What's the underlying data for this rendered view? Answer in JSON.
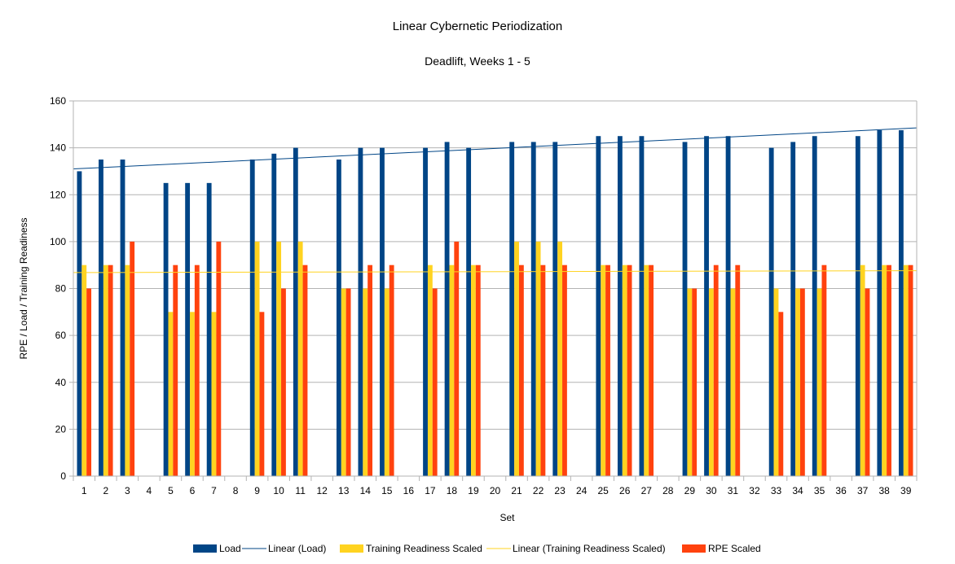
{
  "chart_data": {
    "type": "bar",
    "title": "Linear Cybernetic Periodization",
    "subtitle": "Deadlift, Weeks 1 - 5",
    "xlabel": "Set",
    "ylabel": "RPE / Load / Training Readiness",
    "ylim": [
      0,
      160
    ],
    "yticks": [
      0,
      20,
      40,
      60,
      80,
      100,
      120,
      140,
      160
    ],
    "grid": true,
    "legend_position": "bottom",
    "categories": [
      "1",
      "2",
      "3",
      "4",
      "5",
      "6",
      "7",
      "8",
      "9",
      "10",
      "11",
      "12",
      "13",
      "14",
      "15",
      "16",
      "17",
      "18",
      "19",
      "20",
      "21",
      "22",
      "23",
      "24",
      "25",
      "26",
      "27",
      "28",
      "29",
      "30",
      "31",
      "32",
      "33",
      "34",
      "35",
      "36",
      "37",
      "38",
      "39"
    ],
    "series": [
      {
        "name": "Load",
        "type": "bar",
        "color": "#004586",
        "values": [
          130,
          135,
          135,
          null,
          125,
          125,
          125,
          null,
          135,
          137.5,
          140,
          null,
          135,
          140,
          140,
          null,
          140,
          142.5,
          140,
          null,
          142.5,
          142.5,
          142.5,
          null,
          145,
          145,
          145,
          null,
          142.5,
          145,
          145,
          null,
          140,
          142.5,
          145,
          null,
          145,
          147.5,
          147.5
        ]
      },
      {
        "name": "Training Readiness Scaled",
        "type": "bar",
        "color": "#ffd320",
        "values": [
          90,
          90,
          90,
          null,
          70,
          70,
          70,
          null,
          100,
          100,
          100,
          null,
          80,
          80,
          80,
          null,
          90,
          90,
          90,
          null,
          100,
          100,
          100,
          null,
          90,
          90,
          90,
          null,
          80,
          80,
          80,
          null,
          80,
          80,
          80,
          null,
          90,
          90,
          90
        ]
      },
      {
        "name": "RPE Scaled",
        "type": "bar",
        "color": "#ff420e",
        "values": [
          80,
          90,
          100,
          null,
          90,
          90,
          100,
          null,
          70,
          80,
          90,
          null,
          80,
          90,
          90,
          null,
          80,
          100,
          90,
          null,
          90,
          90,
          90,
          null,
          90,
          90,
          90,
          null,
          80,
          90,
          90,
          null,
          70,
          80,
          90,
          null,
          80,
          90,
          90
        ]
      }
    ],
    "trendlines": [
      {
        "name": "Linear (Load)",
        "color": "#004586",
        "start": [
          0.5,
          131
        ],
        "end": [
          39.5,
          148.5
        ]
      },
      {
        "name": "Linear (Training Readiness Scaled)",
        "color": "#ffd320",
        "start": [
          0.5,
          86.8
        ],
        "end": [
          39.5,
          87.6
        ]
      }
    ],
    "legend": [
      "Load",
      "Linear (Load)",
      "Training Readiness Scaled",
      "Linear (Training Readiness Scaled)",
      "RPE Scaled"
    ]
  }
}
